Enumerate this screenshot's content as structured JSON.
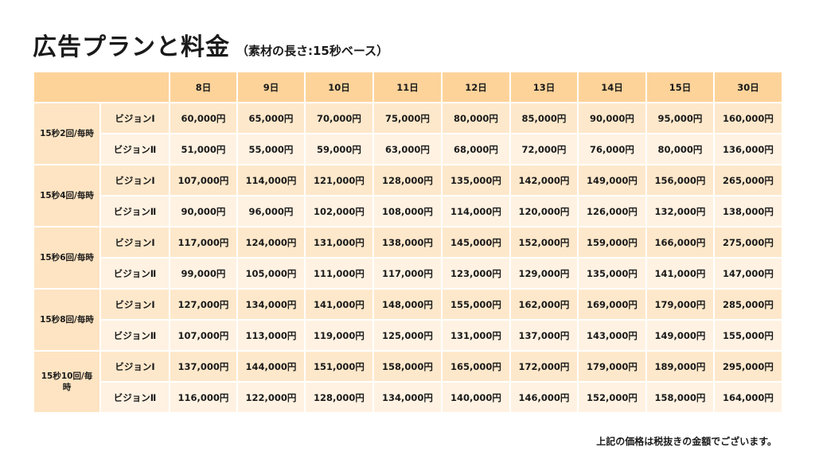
{
  "header": {
    "title": "広告プランと料金",
    "subtitle": "（素材の長さ:15秒ベース）"
  },
  "table": {
    "columns": [
      "8日",
      "9日",
      "10日",
      "11日",
      "12日",
      "13日",
      "14日",
      "15日",
      "30日"
    ],
    "groups": [
      {
        "label": "15秒2回/毎時",
        "rows": [
          {
            "vision": "ビジョンⅠ",
            "prices": [
              "60,000円",
              "65,000円",
              "70,000円",
              "75,000円",
              "80,000円",
              "85,000円",
              "90,000円",
              "95,000円",
              "160,000円"
            ]
          },
          {
            "vision": "ビジョンⅡ",
            "prices": [
              "51,000円",
              "55,000円",
              "59,000円",
              "63,000円",
              "68,000円",
              "72,000円",
              "76,000円",
              "80,000円",
              "136,000円"
            ]
          }
        ]
      },
      {
        "label": "15秒4回/毎時",
        "rows": [
          {
            "vision": "ビジョンⅠ",
            "prices": [
              "107,000円",
              "114,000円",
              "121,000円",
              "128,000円",
              "135,000円",
              "142,000円",
              "149,000円",
              "156,000円",
              "265,000円"
            ]
          },
          {
            "vision": "ビジョンⅡ",
            "prices": [
              "90,000円",
              "96,000円",
              "102,000円",
              "108,000円",
              "114,000円",
              "120,000円",
              "126,000円",
              "132,000円",
              "138,000円"
            ]
          }
        ]
      },
      {
        "label": "15秒6回/毎時",
        "rows": [
          {
            "vision": "ビジョンⅠ",
            "prices": [
              "117,000円",
              "124,000円",
              "131,000円",
              "138,000円",
              "145,000円",
              "152,000円",
              "159,000円",
              "166,000円",
              "275,000円"
            ]
          },
          {
            "vision": "ビジョンⅡ",
            "prices": [
              "99,000円",
              "105,000円",
              "111,000円",
              "117,000円",
              "123,000円",
              "129,000円",
              "135,000円",
              "141,000円",
              "147,000円"
            ]
          }
        ]
      },
      {
        "label": "15秒8回/毎時",
        "rows": [
          {
            "vision": "ビジョンⅠ",
            "prices": [
              "127,000円",
              "134,000円",
              "141,000円",
              "148,000円",
              "155,000円",
              "162,000円",
              "169,000円",
              "179,000円",
              "285,000円"
            ]
          },
          {
            "vision": "ビジョンⅡ",
            "prices": [
              "107,000円",
              "113,000円",
              "119,000円",
              "125,000円",
              "131,000円",
              "137,000円",
              "143,000円",
              "149,000円",
              "155,000円"
            ]
          }
        ]
      },
      {
        "label": "15秒10回/毎時",
        "rows": [
          {
            "vision": "ビジョンⅠ",
            "prices": [
              "137,000円",
              "144,000円",
              "151,000円",
              "158,000円",
              "165,000円",
              "172,000円",
              "179,000円",
              "189,000円",
              "295,000円"
            ]
          },
          {
            "vision": "ビジョンⅡ",
            "prices": [
              "116,000円",
              "122,000円",
              "128,000円",
              "134,000円",
              "140,000円",
              "146,000円",
              "152,000円",
              "158,000円",
              "164,000円"
            ]
          }
        ]
      }
    ]
  },
  "footnote": "上記の価格は税抜きの金額でございます。",
  "colors": {
    "header_bg": "#fdd39a",
    "row_odd_bg": "#fee8cb",
    "row_even_bg": "#fff2e2",
    "group_bg": "#fee4c2"
  }
}
